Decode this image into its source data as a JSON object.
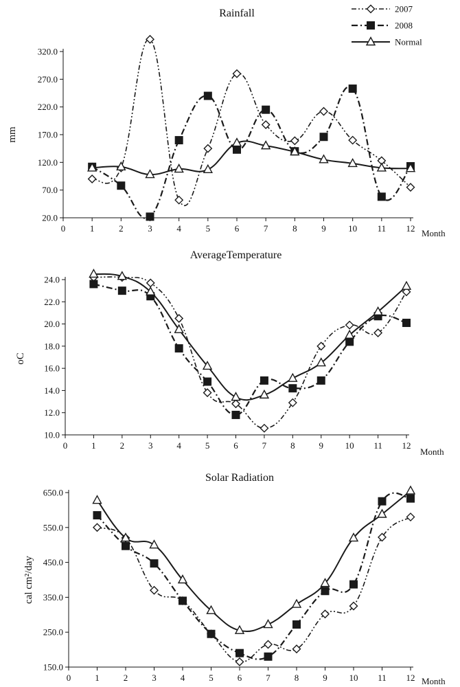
{
  "legend": {
    "items": [
      {
        "label": "2007",
        "marker": "diamond-open",
        "line": "dash-dot-dot"
      },
      {
        "label": "2008",
        "marker": "square-filled",
        "line": "dash-dot"
      },
      {
        "label": "Normal",
        "marker": "triangle-open",
        "line": "solid"
      }
    ]
  },
  "chart_data": [
    {
      "type": "line",
      "title": "Rainfall",
      "ylabel": "mm",
      "xlabel": "Month",
      "xlim": [
        0,
        12
      ],
      "ylim": [
        20,
        320
      ],
      "y_ticks": [
        "20.0",
        "70.0",
        "120.0",
        "170.0",
        "220.0",
        "270.0",
        "320.0"
      ],
      "x_ticks": [
        "0",
        "1",
        "2",
        "3",
        "4",
        "5",
        "6",
        "7",
        "8",
        "9",
        "10",
        "11",
        "12"
      ],
      "x": [
        1,
        2,
        3,
        4,
        5,
        6,
        7,
        8,
        9,
        10,
        11,
        12
      ],
      "series": [
        {
          "name": "2007",
          "values": [
            90,
            110,
            342,
            52,
            145,
            280,
            188,
            159,
            212,
            160,
            123,
            75
          ]
        },
        {
          "name": "2008",
          "values": [
            112,
            78,
            22,
            160,
            240,
            143,
            215,
            140,
            166,
            253,
            58,
            113
          ]
        },
        {
          "name": "Normal",
          "values": [
            110,
            112,
            98,
            108,
            107,
            155,
            150,
            139,
            125,
            118,
            110,
            109
          ]
        }
      ]
    },
    {
      "type": "line",
      "title": "AverageTemperature",
      "ylabel": "oC",
      "xlabel": "Month",
      "xlim": [
        0,
        12
      ],
      "ylim": [
        10,
        24
      ],
      "y_ticks": [
        "10.0",
        "12.0",
        "14.0",
        "16.0",
        "18.0",
        "20.0",
        "22.0",
        "24.0"
      ],
      "x_ticks": [
        "0",
        "1",
        "2",
        "3",
        "4",
        "5",
        "6",
        "7",
        "8",
        "9",
        "10",
        "11",
        "12"
      ],
      "x": [
        1,
        2,
        3,
        4,
        5,
        6,
        7,
        8,
        9,
        10,
        11,
        12
      ],
      "series": [
        {
          "name": "2007",
          "values": [
            24.2,
            24.2,
            23.7,
            20.5,
            13.8,
            12.8,
            10.6,
            12.9,
            18.0,
            19.9,
            19.2,
            22.9
          ]
        },
        {
          "name": "2008",
          "values": [
            23.6,
            23.0,
            22.5,
            17.8,
            14.8,
            11.8,
            14.9,
            14.2,
            14.9,
            18.4,
            20.7,
            20.1
          ]
        },
        {
          "name": "Normal",
          "values": [
            24.5,
            24.3,
            22.9,
            19.5,
            16.2,
            13.4,
            13.6,
            15.1,
            16.5,
            19.0,
            21.1,
            23.4
          ]
        }
      ]
    },
    {
      "type": "line",
      "title": "Solar Radiation",
      "ylabel": "cal cm²/day",
      "xlabel": "Month",
      "xlim": [
        0,
        12
      ],
      "ylim": [
        150,
        650
      ],
      "y_ticks": [
        "150.0",
        "250.0",
        "350.0",
        "450.0",
        "550.0",
        "650.0"
      ],
      "x_ticks": [
        "0",
        "1",
        "2",
        "3",
        "4",
        "5",
        "6",
        "7",
        "8",
        "9",
        "10",
        "11",
        "12"
      ],
      "x": [
        1,
        2,
        3,
        4,
        5,
        6,
        7,
        8,
        9,
        10,
        11,
        12
      ],
      "series": [
        {
          "name": "2007",
          "values": [
            550,
            520,
            370,
            340,
            245,
            165,
            215,
            202,
            302,
            325,
            522,
            580
          ]
        },
        {
          "name": "2008",
          "values": [
            585,
            497,
            447,
            340,
            245,
            190,
            180,
            272,
            368,
            387,
            625,
            633
          ]
        },
        {
          "name": "Normal",
          "values": [
            628,
            520,
            500,
            400,
            312,
            255,
            272,
            330,
            390,
            520,
            588,
            655
          ]
        }
      ]
    }
  ]
}
